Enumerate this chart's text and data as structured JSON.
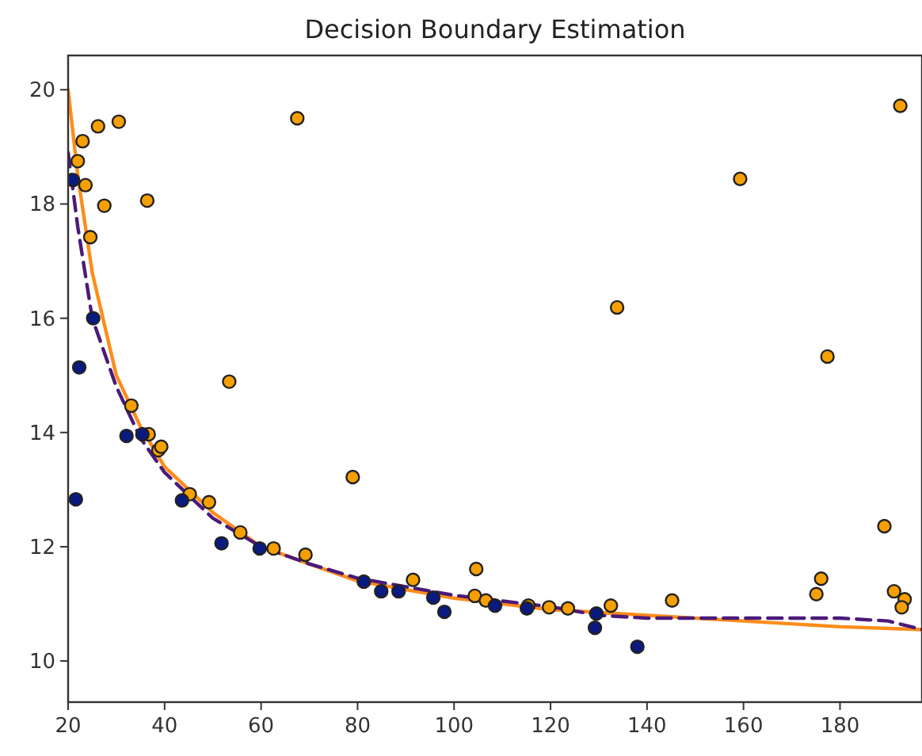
{
  "chart_data": {
    "type": "scatter",
    "title": "Decision Boundary Estimation",
    "xlim": [
      20,
      197
    ],
    "ylim": [
      9.28,
      20.6
    ],
    "xticks": [
      20,
      40,
      60,
      80,
      100,
      120,
      140,
      160,
      180
    ],
    "yticks": [
      10,
      12,
      14,
      16,
      18,
      20
    ],
    "grid": false,
    "marker": "circle",
    "series": [
      {
        "color": "#f5a000",
        "x": [
          22,
          23,
          26.2,
          30.5,
          23.6,
          27.5,
          36.4,
          24.6,
          67.5,
          53.4,
          33.1,
          36.7,
          38.7,
          39.3,
          45.2,
          49.2,
          55.7,
          62.6,
          69.2,
          133.8,
          159.3,
          177.4,
          192.5,
          79,
          91.5,
          104.6,
          104.3,
          106.6,
          115.4,
          119.7,
          123.6,
          132.5,
          145.2,
          175.1,
          176.1,
          189.2,
          191.2,
          193.4,
          192.8
        ],
        "values": [
          18.75,
          19.1,
          19.36,
          19.44,
          18.33,
          17.97,
          18.06,
          17.42,
          19.5,
          14.89,
          14.47,
          13.97,
          13.69,
          13.75,
          12.92,
          12.78,
          12.25,
          11.97,
          11.86,
          16.19,
          18.44,
          15.33,
          19.72,
          13.22,
          11.42,
          11.61,
          11.14,
          11.06,
          10.97,
          10.94,
          10.92,
          10.97,
          11.06,
          11.17,
          11.44,
          12.36,
          11.22,
          11.08,
          10.94
        ]
      },
      {
        "color": "#0a1a80",
        "x": [
          21,
          25.2,
          22.3,
          21.6,
          32.1,
          35.4,
          43.6,
          51.8,
          59.7,
          81.3,
          84.9,
          88.5,
          95.7,
          98,
          108.5,
          115.1,
          129.5,
          129.2,
          138
        ],
        "values": [
          18.42,
          16.0,
          15.14,
          12.83,
          13.94,
          13.97,
          12.81,
          12.06,
          11.97,
          11.39,
          11.22,
          11.22,
          11.11,
          10.86,
          10.97,
          10.92,
          10.83,
          10.58,
          10.25
        ]
      },
      {
        "type": "line",
        "color": "#ff8c1a",
        "line_style": "solid",
        "marker": "none",
        "x": [
          20,
          22,
          25,
          30,
          35,
          40,
          50,
          60,
          70,
          80,
          100,
          120,
          140,
          160,
          180,
          197
        ],
        "values": [
          20,
          18.5,
          16.8,
          15,
          14.1,
          13.4,
          12.6,
          12.0,
          11.7,
          11.4,
          11.1,
          10.9,
          10.8,
          10.7,
          10.6,
          10.55
        ]
      },
      {
        "type": "line",
        "color": "#4b1a7a",
        "line_style": "dashed",
        "marker": "none",
        "x": [
          20,
          22,
          25,
          30,
          35,
          40,
          50,
          60,
          70,
          80,
          100,
          120,
          130,
          140,
          160,
          180,
          190,
          197
        ],
        "values": [
          18.9,
          17.6,
          16.0,
          14.8,
          13.9,
          13.3,
          12.5,
          12.0,
          11.7,
          11.45,
          11.15,
          10.95,
          10.8,
          10.75,
          10.75,
          10.75,
          10.7,
          10.55
        ]
      }
    ]
  }
}
